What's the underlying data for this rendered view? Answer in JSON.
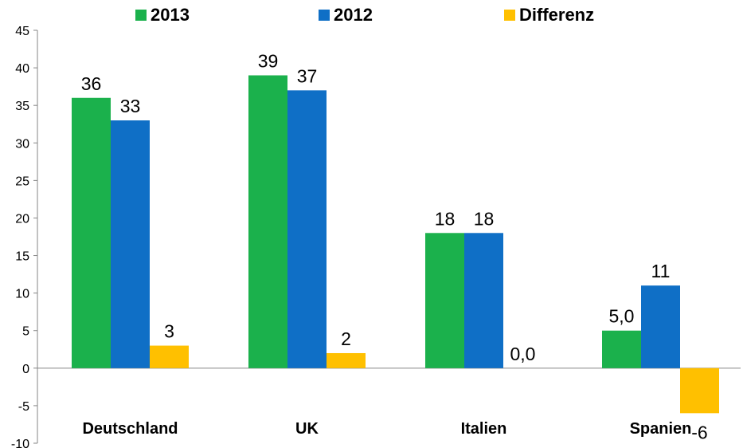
{
  "chart_data": {
    "type": "bar",
    "title": "",
    "xlabel": "",
    "ylabel": "",
    "ylim": [
      -10,
      45
    ],
    "yticks": [
      "-10",
      "-5",
      "0",
      "5",
      "10",
      "15",
      "20",
      "25",
      "30",
      "35",
      "40",
      "45"
    ],
    "ytick_values": [
      -10,
      -5,
      0,
      5,
      10,
      15,
      20,
      25,
      30,
      35,
      40,
      45
    ],
    "grid": false,
    "legend_position": "top",
    "categories": [
      "Deutschland",
      "UK",
      "Italien",
      "Spanien"
    ],
    "series": [
      {
        "name": "2013",
        "color": "#1bb14c",
        "values": [
          36,
          39,
          18,
          5.0
        ],
        "labels": [
          "36",
          "39",
          "18",
          "5,0"
        ]
      },
      {
        "name": "2012",
        "color": "#0f6fc6",
        "values": [
          33,
          37,
          18,
          11
        ],
        "labels": [
          "33",
          "37",
          "18",
          "11"
        ]
      },
      {
        "name": "Differenz",
        "color": "#ffc000",
        "values": [
          3,
          2,
          0,
          -6
        ],
        "labels": [
          "3",
          "2",
          "0,0",
          "-6"
        ]
      }
    ]
  }
}
